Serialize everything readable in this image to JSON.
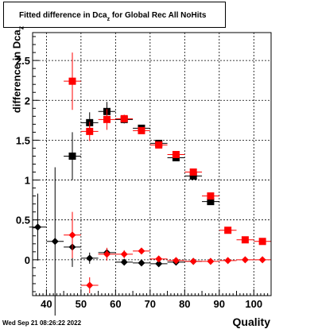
{
  "title": {
    "main": "Fitted difference in Dca",
    "sub": "z",
    "rest": " for Global Rec All NoHits"
  },
  "ylabel": {
    "main": "difference in Dca",
    "sub": "z"
  },
  "xlabel": "Quality",
  "datestamp": "Wed Sep 21 08:26:22 2022",
  "colors": {
    "series_black": "#000000",
    "series_red": "#ff0000"
  },
  "chart_data": {
    "type": "scatter",
    "xlim": [
      36,
      105
    ],
    "ylim": [
      -0.45,
      2.85
    ],
    "xticks": [
      40,
      50,
      60,
      70,
      80,
      90,
      100
    ],
    "yticks": [
      0,
      0.5,
      1,
      1.5,
      2,
      2.5
    ],
    "ytick_labels": [
      "0",
      "0.5",
      "1",
      "1.5",
      "2",
      "2.5"
    ],
    "grid": true,
    "series": [
      {
        "marker": "square",
        "color": "#000000",
        "points": [
          {
            "x": 47.5,
            "y": 1.3,
            "xerr": 2.5,
            "yerr": 0.3
          },
          {
            "x": 52.5,
            "y": 1.72,
            "xerr": 2.5,
            "yerr": 0.13
          },
          {
            "x": 57.5,
            "y": 1.86,
            "xerr": 2.5,
            "yerr": 0.12
          },
          {
            "x": 62.5,
            "y": 1.76,
            "xerr": 2.5,
            "yerr": 0.05
          },
          {
            "x": 67.5,
            "y": 1.65,
            "xerr": 2.5,
            "yerr": 0.03
          },
          {
            "x": 72.5,
            "y": 1.46,
            "xerr": 2.5,
            "yerr": 0.03
          },
          {
            "x": 77.5,
            "y": 1.28,
            "xerr": 2.5,
            "yerr": 0.03
          },
          {
            "x": 82.5,
            "y": 1.05,
            "xerr": 2.5,
            "yerr": 0.03
          },
          {
            "x": 87.5,
            "y": 0.73,
            "xerr": 2.5,
            "yerr": 0.03
          }
        ]
      },
      {
        "marker": "square",
        "color": "#ff0000",
        "points": [
          {
            "x": 47.5,
            "y": 2.24,
            "xerr": 2.5,
            "yerr": 0.36
          },
          {
            "x": 52.5,
            "y": 1.61,
            "xerr": 2.5,
            "yerr": 0.12
          },
          {
            "x": 57.5,
            "y": 1.76,
            "xerr": 2.5,
            "yerr": 0.13
          },
          {
            "x": 62.5,
            "y": 1.77,
            "xerr": 2.5,
            "yerr": 0.05
          },
          {
            "x": 67.5,
            "y": 1.62,
            "xerr": 2.5,
            "yerr": 0.03
          },
          {
            "x": 72.5,
            "y": 1.44,
            "xerr": 2.5,
            "yerr": 0.03
          },
          {
            "x": 77.5,
            "y": 1.32,
            "xerr": 2.5,
            "yerr": 0.03
          },
          {
            "x": 82.5,
            "y": 1.1,
            "xerr": 2.5,
            "yerr": 0.03
          },
          {
            "x": 87.5,
            "y": 0.8,
            "xerr": 2.5,
            "yerr": 0.03
          },
          {
            "x": 92.5,
            "y": 0.37,
            "xerr": 2.5,
            "yerr": 0.02
          },
          {
            "x": 97.5,
            "y": 0.25,
            "xerr": 2.5,
            "yerr": 0.02
          },
          {
            "x": 102.5,
            "y": 0.23,
            "xerr": 2.5,
            "yerr": 0.02
          }
        ]
      },
      {
        "marker": "diamond",
        "color": "#000000",
        "points": [
          {
            "x": 37.5,
            "y": 0.41,
            "xerr": 2.5,
            "yerr": 0.42
          },
          {
            "x": 42.5,
            "y": 0.23,
            "xerr": 2.5,
            "yerr": 0.93
          },
          {
            "x": 47.5,
            "y": 0.16,
            "xerr": 2.5,
            "yerr": 0.25
          },
          {
            "x": 52.5,
            "y": 0.02,
            "xerr": 2.5,
            "yerr": 0.07
          },
          {
            "x": 57.5,
            "y": 0.09,
            "xerr": 2.5,
            "yerr": 0.05
          },
          {
            "x": 62.5,
            "y": -0.03,
            "xerr": 2.5,
            "yerr": 0.03
          },
          {
            "x": 67.5,
            "y": -0.04,
            "xerr": 2.5,
            "yerr": 0.02
          },
          {
            "x": 72.5,
            "y": -0.05,
            "xerr": 2.5,
            "yerr": 0.02
          },
          {
            "x": 77.5,
            "y": -0.03,
            "xerr": 2.5,
            "yerr": 0.02
          },
          {
            "x": 82.5,
            "y": -0.02,
            "xerr": 2.5,
            "yerr": 0.02
          }
        ]
      },
      {
        "marker": "diamond",
        "color": "#ff0000",
        "points": [
          {
            "x": 47.5,
            "y": 0.31,
            "xerr": 2.5,
            "yerr": 0.29
          },
          {
            "x": 52.5,
            "y": -0.32,
            "xerr": 2.5,
            "yerr": 0.1
          },
          {
            "x": 57.5,
            "y": 0.07,
            "xerr": 2.5,
            "yerr": 0.08
          },
          {
            "x": 62.5,
            "y": 0.07,
            "xerr": 2.5,
            "yerr": 0.05
          },
          {
            "x": 67.5,
            "y": 0.11,
            "xerr": 2.5,
            "yerr": 0.03
          },
          {
            "x": 72.5,
            "y": 0.01,
            "xerr": 2.5,
            "yerr": 0.02
          },
          {
            "x": 77.5,
            "y": -0.01,
            "xerr": 2.5,
            "yerr": 0.02
          },
          {
            "x": 82.5,
            "y": -0.02,
            "xerr": 2.5,
            "yerr": 0.02
          },
          {
            "x": 87.5,
            "y": -0.02,
            "xerr": 2.5,
            "yerr": 0.02
          },
          {
            "x": 92.5,
            "y": -0.01,
            "xerr": 2.5,
            "yerr": 0.02
          },
          {
            "x": 97.5,
            "y": 0.0,
            "xerr": 2.5,
            "yerr": 0.02
          },
          {
            "x": 102.5,
            "y": 0.0,
            "xerr": 2.5,
            "yerr": 0.02
          }
        ]
      }
    ]
  }
}
